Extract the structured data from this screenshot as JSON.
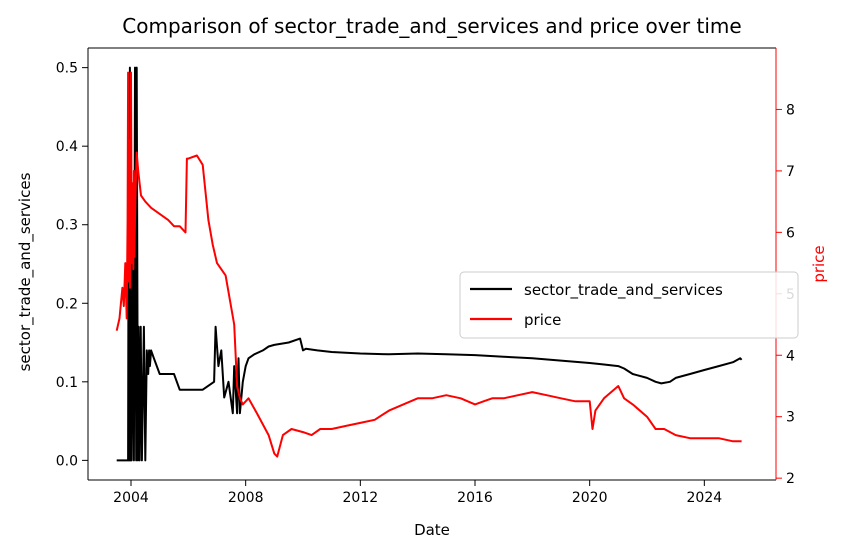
{
  "chart_data": {
    "type": "line",
    "title": "Comparison of sector_trade_and_services and price over time",
    "xlabel": "Date",
    "ylabel_left": "sector_trade_and_services",
    "ylabel_right": "price",
    "xlim": [
      2002.5,
      2026.5
    ],
    "ylim_left": [
      -0.025,
      0.525
    ],
    "ylim_right": [
      1.97,
      9.0
    ],
    "x_ticks": [
      2004,
      2008,
      2012,
      2016,
      2020,
      2024
    ],
    "y_ticks_left": [
      0.0,
      0.1,
      0.2,
      0.3,
      0.4,
      0.5
    ],
    "y_ticks_right": [
      2,
      3,
      4,
      5,
      6,
      7,
      8
    ],
    "grid": false,
    "legend_location": "center-right",
    "colors": {
      "sector_trade_and_services": "#000000",
      "price": "#ff0000",
      "right_axis": "#ff0000"
    },
    "series": [
      {
        "name": "sector_trade_and_services",
        "axis": "left",
        "x": [
          2003.5,
          2003.9,
          2003.92,
          2003.94,
          2003.96,
          2003.98,
          2004.0,
          2004.02,
          2004.06,
          2004.1,
          2004.14,
          2004.18,
          2004.2,
          2004.24,
          2004.26,
          2004.3,
          2004.34,
          2004.38,
          2004.45,
          2004.5,
          2004.55,
          2004.6,
          2004.63,
          2004.66,
          2004.7,
          2004.8,
          2005.0,
          2005.2,
          2005.5,
          2005.7,
          2006.0,
          2006.5,
          2006.9,
          2006.95,
          2007.05,
          2007.15,
          2007.25,
          2007.4,
          2007.55,
          2007.6,
          2007.7,
          2007.75,
          2007.8,
          2007.9,
          2008.0,
          2008.1,
          2008.3,
          2008.6,
          2008.8,
          2009.0,
          2009.5,
          2009.9,
          2010.0,
          2010.1,
          2010.5,
          2011.0,
          2012.0,
          2013.0,
          2014.0,
          2015.0,
          2016.0,
          2017.0,
          2018.0,
          2019.0,
          2020.0,
          2020.5,
          2021.0,
          2021.2,
          2021.5,
          2022.0,
          2022.3,
          2022.5,
          2022.8,
          2023.0,
          2023.5,
          2024.0,
          2024.5,
          2025.0,
          2025.25,
          2025.3
        ],
        "values": [
          0.0,
          0.0,
          0.42,
          0.0,
          0.5,
          0.0,
          0.45,
          0.0,
          0.28,
          0.0,
          0.5,
          0.0,
          0.5,
          0.0,
          0.17,
          0.0,
          0.17,
          0.0,
          0.17,
          0.0,
          0.14,
          0.11,
          0.14,
          0.12,
          0.14,
          0.13,
          0.11,
          0.11,
          0.11,
          0.09,
          0.09,
          0.09,
          0.1,
          0.17,
          0.12,
          0.14,
          0.08,
          0.1,
          0.06,
          0.12,
          0.06,
          0.13,
          0.06,
          0.1,
          0.12,
          0.13,
          0.135,
          0.14,
          0.145,
          0.147,
          0.15,
          0.155,
          0.14,
          0.142,
          0.14,
          0.138,
          0.136,
          0.135,
          0.136,
          0.135,
          0.134,
          0.132,
          0.13,
          0.127,
          0.124,
          0.122,
          0.12,
          0.117,
          0.11,
          0.105,
          0.1,
          0.098,
          0.1,
          0.105,
          0.11,
          0.115,
          0.12,
          0.125,
          0.13,
          0.128
        ]
      },
      {
        "name": "price",
        "axis": "right",
        "x": [
          2003.5,
          2003.6,
          2003.7,
          2003.75,
          2003.8,
          2003.85,
          2003.88,
          2003.9,
          2003.92,
          2003.95,
          2003.97,
          2004.0,
          2004.02,
          2004.05,
          2004.08,
          2004.1,
          2004.12,
          2004.15,
          2004.2,
          2004.25,
          2004.35,
          2004.5,
          2004.7,
          2005.0,
          2005.3,
          2005.5,
          2005.7,
          2005.9,
          2005.95,
          2006.0,
          2006.3,
          2006.5,
          2006.7,
          2006.85,
          2007.0,
          2007.3,
          2007.6,
          2007.7,
          2007.8,
          2007.9,
          2008.1,
          2008.4,
          2008.8,
          2009.0,
          2009.1,
          2009.3,
          2009.6,
          2010.0,
          2010.3,
          2010.6,
          2011.0,
          2011.5,
          2012.0,
          2012.5,
          2013.0,
          2013.5,
          2014.0,
          2014.5,
          2015.0,
          2015.5,
          2016.0,
          2016.3,
          2016.6,
          2017.0,
          2017.5,
          2018.0,
          2018.5,
          2019.0,
          2019.5,
          2020.0,
          2020.1,
          2020.2,
          2020.5,
          2021.0,
          2021.2,
          2021.5,
          2022.0,
          2022.3,
          2022.6,
          2023.0,
          2023.5,
          2024.0,
          2024.5,
          2025.0,
          2025.3
        ],
        "values": [
          4.4,
          4.6,
          5.1,
          4.8,
          5.5,
          4.6,
          6.2,
          8.6,
          5.2,
          7.5,
          5.1,
          8.6,
          5.5,
          6.8,
          5.4,
          7.0,
          5.6,
          6.5,
          7.3,
          7.0,
          6.6,
          6.5,
          6.4,
          6.3,
          6.2,
          6.1,
          6.1,
          6.0,
          7.2,
          7.2,
          7.25,
          7.1,
          6.2,
          5.8,
          5.5,
          5.3,
          4.5,
          3.5,
          3.3,
          3.2,
          3.3,
          3.05,
          2.7,
          2.4,
          2.35,
          2.7,
          2.8,
          2.75,
          2.7,
          2.8,
          2.8,
          2.85,
          2.9,
          2.95,
          3.1,
          3.2,
          3.3,
          3.3,
          3.35,
          3.3,
          3.2,
          3.25,
          3.3,
          3.3,
          3.35,
          3.4,
          3.35,
          3.3,
          3.25,
          3.25,
          2.8,
          3.1,
          3.3,
          3.5,
          3.3,
          3.2,
          3.0,
          2.8,
          2.8,
          2.7,
          2.65,
          2.65,
          2.65,
          2.6,
          2.6
        ]
      }
    ]
  }
}
